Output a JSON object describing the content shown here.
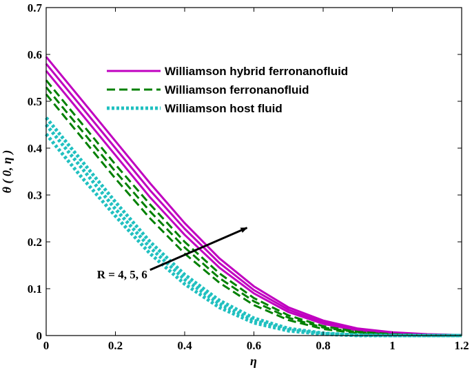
{
  "chart_data": {
    "type": "line",
    "title": "",
    "xlabel": "η",
    "ylabel": "θ ( 0, η )",
    "xlim": [
      0,
      1.2
    ],
    "ylim": [
      0,
      0.7
    ],
    "xticks": [
      "0",
      "0.2",
      "0.4",
      "0.6",
      "0.8",
      "1",
      "1.2"
    ],
    "yticks": [
      "0",
      "0.1",
      "0.2",
      "0.3",
      "0.4",
      "0.5",
      "0.6",
      "0.7"
    ],
    "grid": false,
    "legend_position": "top-center",
    "legend": [
      {
        "label": "Williamson hybrid ferronanofluid",
        "color": "#c000c0",
        "style": "solid"
      },
      {
        "label": "Williamson ferronanofluid",
        "color": "#008000",
        "style": "dashed"
      },
      {
        "label": "Williamson host fluid",
        "color": "#20c0c0",
        "style": "dotted"
      }
    ],
    "annotation": {
      "text": "R = 4, 5, 6",
      "arrow_from": [
        0.3,
        0.14
      ],
      "arrow_to": [
        0.58,
        0.23
      ]
    },
    "series": [
      {
        "group": 0,
        "color": "#c000c0",
        "style": "solid",
        "x": [
          0,
          0.1,
          0.2,
          0.3,
          0.4,
          0.5,
          0.6,
          0.7,
          0.8,
          0.9,
          1.0,
          1.1,
          1.2
        ],
        "y": [
          0.595,
          0.505,
          0.415,
          0.325,
          0.24,
          0.165,
          0.105,
          0.06,
          0.032,
          0.015,
          0.007,
          0.003,
          0.001
        ]
      },
      {
        "group": 0,
        "color": "#c000c0",
        "style": "solid",
        "x": [
          0,
          0.1,
          0.2,
          0.3,
          0.4,
          0.5,
          0.6,
          0.7,
          0.8,
          0.9,
          1.0,
          1.1,
          1.2
        ],
        "y": [
          0.58,
          0.49,
          0.4,
          0.31,
          0.228,
          0.155,
          0.097,
          0.055,
          0.028,
          0.013,
          0.006,
          0.002,
          0.001
        ]
      },
      {
        "group": 0,
        "color": "#c000c0",
        "style": "solid",
        "x": [
          0,
          0.1,
          0.2,
          0.3,
          0.4,
          0.5,
          0.6,
          0.7,
          0.8,
          0.9,
          1.0,
          1.1,
          1.2
        ],
        "y": [
          0.565,
          0.475,
          0.385,
          0.295,
          0.215,
          0.145,
          0.09,
          0.05,
          0.025,
          0.011,
          0.005,
          0.002,
          0.001
        ]
      },
      {
        "group": 1,
        "color": "#008000",
        "style": "dashed",
        "x": [
          0,
          0.1,
          0.2,
          0.3,
          0.4,
          0.5,
          0.6,
          0.7,
          0.8,
          0.9,
          1.0,
          1.1,
          1.2
        ],
        "y": [
          0.545,
          0.455,
          0.365,
          0.28,
          0.2,
          0.133,
          0.08,
          0.043,
          0.02,
          0.008,
          0.003,
          0.001,
          0.0
        ]
      },
      {
        "group": 1,
        "color": "#008000",
        "style": "dashed",
        "x": [
          0,
          0.1,
          0.2,
          0.3,
          0.4,
          0.5,
          0.6,
          0.7,
          0.8,
          0.9,
          1.0,
          1.1,
          1.2
        ],
        "y": [
          0.53,
          0.44,
          0.35,
          0.265,
          0.188,
          0.123,
          0.073,
          0.038,
          0.017,
          0.007,
          0.002,
          0.001,
          0.0
        ]
      },
      {
        "group": 1,
        "color": "#008000",
        "style": "dashed",
        "x": [
          0,
          0.1,
          0.2,
          0.3,
          0.4,
          0.5,
          0.6,
          0.7,
          0.8,
          0.9,
          1.0,
          1.1,
          1.2
        ],
        "y": [
          0.515,
          0.425,
          0.335,
          0.25,
          0.175,
          0.113,
          0.065,
          0.033,
          0.014,
          0.005,
          0.002,
          0.0,
          0.0
        ]
      },
      {
        "group": 2,
        "color": "#20c0c0",
        "style": "dotted",
        "x": [
          0,
          0.1,
          0.2,
          0.3,
          0.4,
          0.5,
          0.6,
          0.7,
          0.8,
          0.9,
          1.0,
          1.1,
          1.2
        ],
        "y": [
          0.465,
          0.375,
          0.285,
          0.2,
          0.13,
          0.075,
          0.037,
          0.015,
          0.005,
          0.001,
          0.0,
          0.0,
          0.0
        ]
      },
      {
        "group": 2,
        "color": "#20c0c0",
        "style": "dotted",
        "x": [
          0,
          0.1,
          0.2,
          0.3,
          0.4,
          0.5,
          0.6,
          0.7,
          0.8,
          0.9,
          1.0,
          1.1,
          1.2
        ],
        "y": [
          0.45,
          0.36,
          0.27,
          0.188,
          0.12,
          0.068,
          0.032,
          0.012,
          0.004,
          0.001,
          0.0,
          0.0,
          0.0
        ]
      },
      {
        "group": 2,
        "color": "#20c0c0",
        "style": "dotted",
        "x": [
          0,
          0.1,
          0.2,
          0.3,
          0.4,
          0.5,
          0.6,
          0.7,
          0.8,
          0.9,
          1.0,
          1.1,
          1.2
        ],
        "y": [
          0.43,
          0.34,
          0.255,
          0.175,
          0.11,
          0.06,
          0.027,
          0.01,
          0.003,
          0.0,
          0.0,
          0.0,
          0.0
        ]
      }
    ]
  }
}
